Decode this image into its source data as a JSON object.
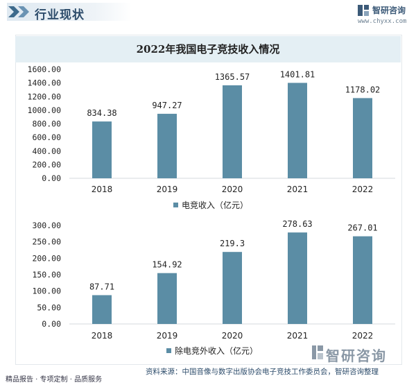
{
  "header": {
    "title": "行业现状",
    "brand_name": "智研咨询",
    "brand_url": "www.chyxx.com"
  },
  "chart_title": "2022年我国电子竞技收入情况",
  "chart_data": [
    {
      "type": "bar",
      "categories": [
        "2018",
        "2019",
        "2020",
        "2021",
        "2022"
      ],
      "series": [
        {
          "name": "电竞收入（亿元）",
          "values": [
            834.38,
            947.27,
            1365.57,
            1401.81,
            1178.02
          ]
        }
      ],
      "value_labels": [
        "834.38",
        "947.27",
        "1365.57",
        "1401.81",
        "1178.02"
      ],
      "ylim": [
        0,
        1600
      ],
      "yticks": [
        "0.00",
        "200.00",
        "400.00",
        "600.00",
        "800.00",
        "1000.00",
        "1200.00",
        "1400.00",
        "1600.00"
      ],
      "color": "#5b8da5",
      "legend_position": "bottom"
    },
    {
      "type": "bar",
      "categories": [
        "2018",
        "2019",
        "2020",
        "2021",
        "2022"
      ],
      "series": [
        {
          "name": "除电竞外收入（亿元）",
          "values": [
            87.71,
            154.92,
            219.3,
            278.63,
            267.01
          ]
        }
      ],
      "value_labels": [
        "87.71",
        "154.92",
        "219.3",
        "278.63",
        "267.01"
      ],
      "ylim": [
        0,
        300
      ],
      "yticks": [
        "0.00",
        "50.00",
        "100.00",
        "150.00",
        "200.00",
        "250.00",
        "300.00"
      ],
      "color": "#5b8da5",
      "legend_position": "bottom"
    }
  ],
  "footer": {
    "left_text": "精品报告 · 专项定制 · 品质服务",
    "right_text": "资料来源：中国音像与数字出版协会电子竞技工作委员会，智研咨询整理",
    "logo_text": "智研咨询"
  }
}
